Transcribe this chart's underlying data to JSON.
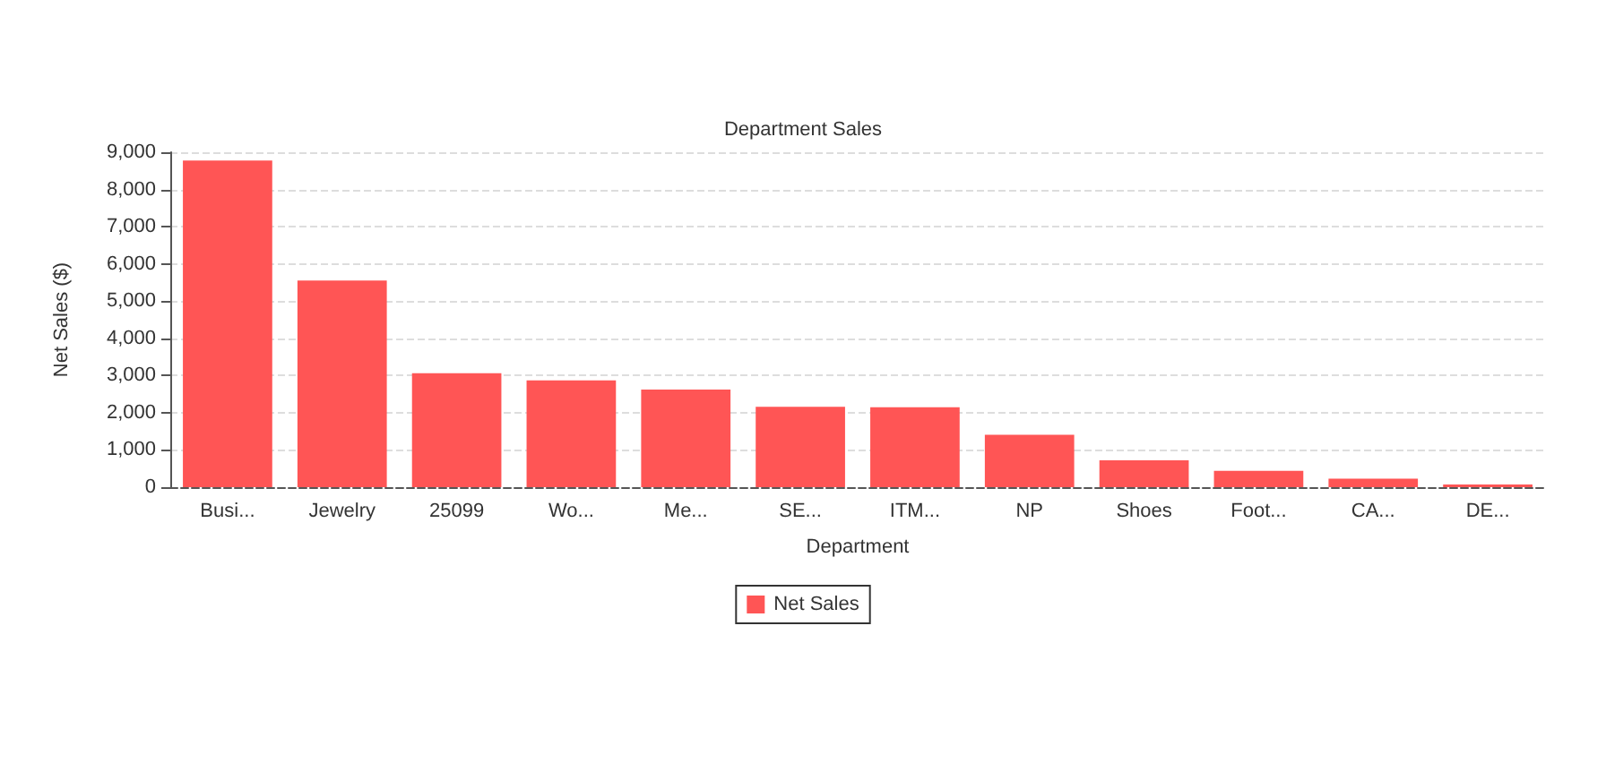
{
  "chart_data": {
    "type": "bar",
    "title": "Department Sales",
    "xlabel": "Department",
    "ylabel": "Net Sales ($)",
    "categories": [
      "Busi...",
      "Jewelry",
      "25099",
      "Wo...",
      "Me...",
      "SE...",
      "ITM...",
      "NP",
      "Shoes",
      "Foot...",
      "CA...",
      "DE..."
    ],
    "series": [
      {
        "name": "Net Sales",
        "color": "#ff5555",
        "values": [
          8780,
          5550,
          3060,
          2870,
          2620,
          2160,
          2150,
          1410,
          720,
          440,
          230,
          70
        ]
      }
    ],
    "ylim": [
      0,
      9000
    ],
    "yticks": [
      0,
      {
        "value": 1000,
        "label": "1,000"
      },
      {
        "value": 2000,
        "label": "2,000"
      },
      {
        "value": 3000,
        "label": "3,000"
      },
      {
        "value": 4000,
        "label": "4,000"
      },
      {
        "value": 5000,
        "label": "5,000"
      },
      {
        "value": 6000,
        "label": "6,000"
      },
      {
        "value": 7000,
        "label": "7,000"
      },
      {
        "value": 8000,
        "label": "8,000"
      },
      {
        "value": 9000,
        "label": "9,000"
      }
    ],
    "grid": "y",
    "legend": "bottom"
  }
}
